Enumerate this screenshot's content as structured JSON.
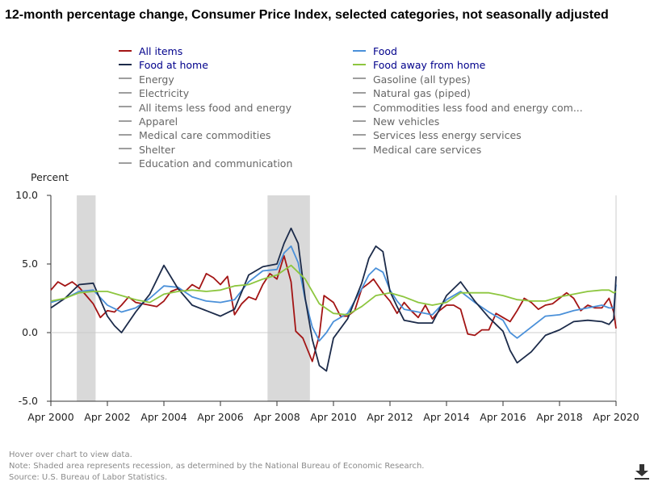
{
  "title": "12-month percentage change, Consumer Price Index, selected categories, not seasonally adjusted",
  "legend": {
    "active_color": "#00008b",
    "inactive_color": "#666666",
    "items": [
      {
        "label": "All items",
        "color": "#a31515",
        "active": true
      },
      {
        "label": "Food",
        "color": "#4a90d9",
        "active": true
      },
      {
        "label": "Food at home",
        "color": "#1c2b4a",
        "active": true
      },
      {
        "label": "Food away from home",
        "color": "#8dc63f",
        "active": true
      },
      {
        "label": "Energy",
        "color": "#9e9e9e",
        "active": false
      },
      {
        "label": "Gasoline (all types)",
        "color": "#9e9e9e",
        "active": false
      },
      {
        "label": "Electricity",
        "color": "#9e9e9e",
        "active": false
      },
      {
        "label": "Natural gas (piped)",
        "color": "#9e9e9e",
        "active": false
      },
      {
        "label": "All items less food and energy",
        "color": "#9e9e9e",
        "active": false
      },
      {
        "label": "Commodities less food and energy com...",
        "color": "#9e9e9e",
        "active": false
      },
      {
        "label": "Apparel",
        "color": "#9e9e9e",
        "active": false
      },
      {
        "label": "New vehicles",
        "color": "#9e9e9e",
        "active": false
      },
      {
        "label": "Medical care commodities",
        "color": "#9e9e9e",
        "active": false
      },
      {
        "label": "Services less energy services",
        "color": "#9e9e9e",
        "active": false
      },
      {
        "label": "Shelter",
        "color": "#9e9e9e",
        "active": false
      },
      {
        "label": "Medical care services",
        "color": "#9e9e9e",
        "active": false
      },
      {
        "label": "Education and communication",
        "color": "#9e9e9e",
        "active": false
      }
    ]
  },
  "notes": {
    "hover": "Hover over chart to view data.",
    "note": "Note: Shaded area represents recession, as determined by the National Bureau of Economic Research.",
    "source": "Source: U.S. Bureau of Labor Statistics."
  },
  "download_icon": "download-icon",
  "chart_data": {
    "type": "line",
    "ylabel": "Percent",
    "ylim": [
      -5,
      10
    ],
    "yticks": [
      "10.0",
      "5.0",
      "0.0",
      "-5.0"
    ],
    "yticks_values": [
      10,
      5,
      0,
      -5
    ],
    "xlim": [
      "2000-04",
      "2020-04"
    ],
    "xticks": [
      "Apr 2000",
      "Apr 2002",
      "Apr 2004",
      "Apr 2006",
      "Apr 2008",
      "Apr 2010",
      "Apr 2012",
      "Apr 2014",
      "Apr 2016",
      "Apr 2018",
      "Apr 2020"
    ],
    "xticks_dates": [
      "2000-04",
      "2002-04",
      "2004-04",
      "2006-04",
      "2008-04",
      "2010-04",
      "2012-04",
      "2014-04",
      "2016-04",
      "2018-04",
      "2020-04"
    ],
    "grid": false,
    "legend_position": "top",
    "recessions": [
      {
        "start": "2001-03",
        "end": "2001-11"
      },
      {
        "start": "2007-12",
        "end": "2009-06"
      }
    ],
    "series": [
      {
        "name": "All items",
        "color": "#a31515",
        "points": [
          [
            "2000-04",
            3.1
          ],
          [
            "2000-07",
            3.7
          ],
          [
            "2000-10",
            3.4
          ],
          [
            "2001-01",
            3.7
          ],
          [
            "2001-04",
            3.3
          ],
          [
            "2001-07",
            2.7
          ],
          [
            "2001-10",
            2.1
          ],
          [
            "2002-01",
            1.1
          ],
          [
            "2002-04",
            1.6
          ],
          [
            "2002-07",
            1.5
          ],
          [
            "2002-10",
            2.0
          ],
          [
            "2003-01",
            2.6
          ],
          [
            "2003-04",
            2.2
          ],
          [
            "2003-07",
            2.1
          ],
          [
            "2003-10",
            2.0
          ],
          [
            "2004-01",
            1.9
          ],
          [
            "2004-04",
            2.3
          ],
          [
            "2004-07",
            3.0
          ],
          [
            "2004-10",
            3.2
          ],
          [
            "2005-01",
            3.0
          ],
          [
            "2005-04",
            3.5
          ],
          [
            "2005-07",
            3.2
          ],
          [
            "2005-10",
            4.3
          ],
          [
            "2006-01",
            4.0
          ],
          [
            "2006-04",
            3.5
          ],
          [
            "2006-07",
            4.1
          ],
          [
            "2006-10",
            1.3
          ],
          [
            "2007-01",
            2.1
          ],
          [
            "2007-04",
            2.6
          ],
          [
            "2007-07",
            2.4
          ],
          [
            "2007-10",
            3.5
          ],
          [
            "2008-01",
            4.3
          ],
          [
            "2008-04",
            3.9
          ],
          [
            "2008-07",
            5.6
          ],
          [
            "2008-10",
            3.7
          ],
          [
            "2008-12",
            0.1
          ],
          [
            "2009-03",
            -0.4
          ],
          [
            "2009-07",
            -2.1
          ],
          [
            "2009-10",
            -0.2
          ],
          [
            "2009-12",
            2.7
          ],
          [
            "2010-04",
            2.2
          ],
          [
            "2010-07",
            1.2
          ],
          [
            "2010-10",
            1.2
          ],
          [
            "2011-01",
            1.6
          ],
          [
            "2011-04",
            3.2
          ],
          [
            "2011-07",
            3.6
          ],
          [
            "2011-09",
            3.9
          ],
          [
            "2012-01",
            2.9
          ],
          [
            "2012-04",
            2.3
          ],
          [
            "2012-07",
            1.4
          ],
          [
            "2012-10",
            2.2
          ],
          [
            "2013-01",
            1.6
          ],
          [
            "2013-04",
            1.1
          ],
          [
            "2013-07",
            2.0
          ],
          [
            "2013-10",
            1.0
          ],
          [
            "2014-01",
            1.6
          ],
          [
            "2014-04",
            2.0
          ],
          [
            "2014-07",
            2.0
          ],
          [
            "2014-10",
            1.7
          ],
          [
            "2015-01",
            -0.1
          ],
          [
            "2015-04",
            -0.2
          ],
          [
            "2015-07",
            0.2
          ],
          [
            "2015-10",
            0.2
          ],
          [
            "2016-01",
            1.4
          ],
          [
            "2016-04",
            1.1
          ],
          [
            "2016-07",
            0.8
          ],
          [
            "2016-10",
            1.6
          ],
          [
            "2017-01",
            2.5
          ],
          [
            "2017-04",
            2.2
          ],
          [
            "2017-07",
            1.7
          ],
          [
            "2017-10",
            2.0
          ],
          [
            "2018-01",
            2.1
          ],
          [
            "2018-04",
            2.5
          ],
          [
            "2018-07",
            2.9
          ],
          [
            "2018-10",
            2.5
          ],
          [
            "2019-01",
            1.6
          ],
          [
            "2019-04",
            2.0
          ],
          [
            "2019-07",
            1.8
          ],
          [
            "2019-10",
            1.8
          ],
          [
            "2020-01",
            2.5
          ],
          [
            "2020-03",
            1.5
          ],
          [
            "2020-04",
            0.3
          ]
        ]
      },
      {
        "name": "Food",
        "color": "#4a90d9",
        "points": [
          [
            "2000-04",
            2.2
          ],
          [
            "2000-10",
            2.5
          ],
          [
            "2001-04",
            3.0
          ],
          [
            "2001-10",
            3.1
          ],
          [
            "2002-04",
            2.0
          ],
          [
            "2002-10",
            1.5
          ],
          [
            "2003-04",
            1.8
          ],
          [
            "2003-10",
            2.5
          ],
          [
            "2004-04",
            3.4
          ],
          [
            "2004-10",
            3.3
          ],
          [
            "2005-04",
            2.6
          ],
          [
            "2005-10",
            2.3
          ],
          [
            "2006-04",
            2.2
          ],
          [
            "2006-10",
            2.4
          ],
          [
            "2007-04",
            3.7
          ],
          [
            "2007-10",
            4.5
          ],
          [
            "2008-04",
            4.6
          ],
          [
            "2008-07",
            5.8
          ],
          [
            "2008-10",
            6.3
          ],
          [
            "2009-01",
            5.1
          ],
          [
            "2009-04",
            2.4
          ],
          [
            "2009-07",
            0.4
          ],
          [
            "2009-10",
            -0.6
          ],
          [
            "2010-01",
            0.0
          ],
          [
            "2010-04",
            0.8
          ],
          [
            "2010-10",
            1.4
          ],
          [
            "2011-04",
            3.2
          ],
          [
            "2011-07",
            4.2
          ],
          [
            "2011-10",
            4.7
          ],
          [
            "2012-01",
            4.4
          ],
          [
            "2012-04",
            3.1
          ],
          [
            "2012-07",
            2.3
          ],
          [
            "2012-10",
            1.7
          ],
          [
            "2013-04",
            1.5
          ],
          [
            "2013-10",
            1.3
          ],
          [
            "2014-04",
            2.4
          ],
          [
            "2014-10",
            3.0
          ],
          [
            "2015-04",
            2.2
          ],
          [
            "2015-10",
            1.5
          ],
          [
            "2016-04",
            0.9
          ],
          [
            "2016-07",
            0.0
          ],
          [
            "2016-10",
            -0.4
          ],
          [
            "2017-04",
            0.4
          ],
          [
            "2017-10",
            1.2
          ],
          [
            "2018-04",
            1.3
          ],
          [
            "2018-10",
            1.6
          ],
          [
            "2019-04",
            1.8
          ],
          [
            "2019-10",
            2.0
          ],
          [
            "2020-01",
            1.8
          ],
          [
            "2020-03",
            1.8
          ],
          [
            "2020-04",
            3.5
          ]
        ]
      },
      {
        "name": "Food at home",
        "color": "#1c2b4a",
        "points": [
          [
            "2000-04",
            1.8
          ],
          [
            "2000-10",
            2.5
          ],
          [
            "2001-04",
            3.5
          ],
          [
            "2001-10",
            3.6
          ],
          [
            "2002-04",
            1.2
          ],
          [
            "2002-07",
            0.5
          ],
          [
            "2002-10",
            0.0
          ],
          [
            "2003-04",
            1.5
          ],
          [
            "2003-10",
            2.8
          ],
          [
            "2004-04",
            4.9
          ],
          [
            "2004-10",
            3.2
          ],
          [
            "2005-04",
            2.0
          ],
          [
            "2005-10",
            1.6
          ],
          [
            "2006-04",
            1.2
          ],
          [
            "2006-10",
            1.7
          ],
          [
            "2007-04",
            4.2
          ],
          [
            "2007-10",
            4.8
          ],
          [
            "2008-04",
            5.0
          ],
          [
            "2008-07",
            6.5
          ],
          [
            "2008-10",
            7.6
          ],
          [
            "2009-01",
            6.5
          ],
          [
            "2009-04",
            2.5
          ],
          [
            "2009-07",
            -0.5
          ],
          [
            "2009-10",
            -2.4
          ],
          [
            "2010-01",
            -2.8
          ],
          [
            "2010-04",
            -0.4
          ],
          [
            "2010-10",
            1.0
          ],
          [
            "2011-04",
            3.6
          ],
          [
            "2011-07",
            5.4
          ],
          [
            "2011-10",
            6.3
          ],
          [
            "2012-01",
            5.9
          ],
          [
            "2012-04",
            3.0
          ],
          [
            "2012-07",
            1.9
          ],
          [
            "2012-10",
            0.9
          ],
          [
            "2013-04",
            0.7
          ],
          [
            "2013-10",
            0.7
          ],
          [
            "2014-04",
            2.7
          ],
          [
            "2014-10",
            3.7
          ],
          [
            "2015-04",
            2.3
          ],
          [
            "2015-10",
            1.1
          ],
          [
            "2016-04",
            0.1
          ],
          [
            "2016-07",
            -1.3
          ],
          [
            "2016-10",
            -2.2
          ],
          [
            "2017-04",
            -1.4
          ],
          [
            "2017-10",
            -0.2
          ],
          [
            "2018-04",
            0.2
          ],
          [
            "2018-10",
            0.8
          ],
          [
            "2019-04",
            0.9
          ],
          [
            "2019-10",
            0.8
          ],
          [
            "2020-01",
            0.6
          ],
          [
            "2020-03",
            1.0
          ],
          [
            "2020-04",
            4.1
          ]
        ]
      },
      {
        "name": "Food away from home",
        "color": "#8dc63f",
        "points": [
          [
            "2000-04",
            2.3
          ],
          [
            "2000-10",
            2.5
          ],
          [
            "2001-04",
            2.9
          ],
          [
            "2001-10",
            3.0
          ],
          [
            "2002-04",
            3.0
          ],
          [
            "2002-10",
            2.7
          ],
          [
            "2003-04",
            2.4
          ],
          [
            "2003-10",
            2.2
          ],
          [
            "2004-04",
            2.8
          ],
          [
            "2004-10",
            3.0
          ],
          [
            "2005-04",
            3.1
          ],
          [
            "2005-10",
            3.0
          ],
          [
            "2006-04",
            3.1
          ],
          [
            "2006-10",
            3.4
          ],
          [
            "2007-04",
            3.5
          ],
          [
            "2007-10",
            3.9
          ],
          [
            "2008-04",
            4.2
          ],
          [
            "2008-10",
            4.9
          ],
          [
            "2009-04",
            3.9
          ],
          [
            "2009-10",
            2.1
          ],
          [
            "2010-04",
            1.4
          ],
          [
            "2010-10",
            1.3
          ],
          [
            "2011-04",
            1.9
          ],
          [
            "2011-10",
            2.7
          ],
          [
            "2012-04",
            2.9
          ],
          [
            "2012-10",
            2.6
          ],
          [
            "2013-04",
            2.2
          ],
          [
            "2013-10",
            2.0
          ],
          [
            "2014-04",
            2.2
          ],
          [
            "2014-10",
            2.9
          ],
          [
            "2015-04",
            2.9
          ],
          [
            "2015-10",
            2.9
          ],
          [
            "2016-04",
            2.7
          ],
          [
            "2016-10",
            2.4
          ],
          [
            "2017-04",
            2.3
          ],
          [
            "2017-10",
            2.3
          ],
          [
            "2018-04",
            2.6
          ],
          [
            "2018-10",
            2.8
          ],
          [
            "2019-04",
            3.0
          ],
          [
            "2019-10",
            3.1
          ],
          [
            "2020-01",
            3.1
          ],
          [
            "2020-03",
            2.9
          ],
          [
            "2020-04",
            3.0
          ]
        ]
      }
    ]
  }
}
